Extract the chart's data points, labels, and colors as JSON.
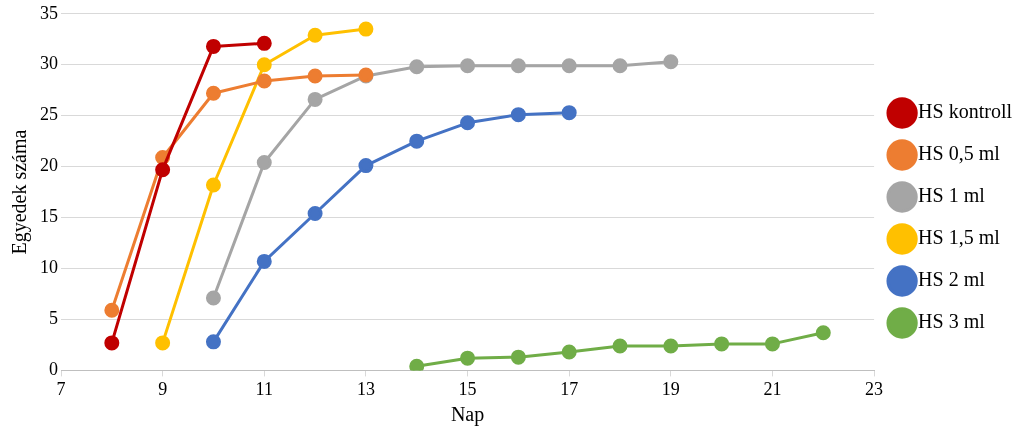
{
  "chart_data": {
    "type": "line",
    "xlabel": "Nap",
    "ylabel": "Egyedek száma",
    "xlim": [
      7,
      23
    ],
    "xticks": [
      7,
      9,
      11,
      13,
      15,
      17,
      19,
      21,
      23
    ],
    "ylim": [
      0,
      35
    ],
    "yticks": [
      0,
      5,
      10,
      15,
      20,
      25,
      30,
      35
    ],
    "grid": "y",
    "legend": "right",
    "marker": "circle",
    "line_style": "solid",
    "series": [
      {
        "name": "HS kontroll",
        "color": "#c00000",
        "x": [
          8,
          9,
          10,
          11
        ],
        "values": [
          2.7,
          19.7,
          31.8,
          32.1
        ]
      },
      {
        "name": "HS 0,5 ml",
        "color": "#ed7d31",
        "x": [
          8,
          9,
          10,
          11,
          12,
          13
        ],
        "values": [
          5.9,
          20.9,
          27.2,
          28.4,
          28.9,
          29.0
        ]
      },
      {
        "name": "HS 1 ml",
        "color": "#a5a5a5",
        "x": [
          10,
          11,
          12,
          13,
          14,
          15,
          16,
          17,
          18,
          19
        ],
        "values": [
          7.1,
          20.4,
          26.6,
          28.9,
          29.8,
          29.9,
          29.9,
          29.9,
          29.9,
          30.3
        ]
      },
      {
        "name": "HS 1,5 ml",
        "color": "#ffc000",
        "x": [
          9,
          10,
          11,
          12,
          13
        ],
        "values": [
          2.7,
          18.2,
          30.0,
          32.9,
          33.5
        ]
      },
      {
        "name": "HS 2 ml",
        "color": "#4472c4",
        "x": [
          10,
          11,
          12,
          13,
          14,
          15,
          16,
          17
        ],
        "values": [
          2.8,
          10.7,
          15.4,
          20.1,
          22.5,
          24.3,
          25.1,
          25.3
        ]
      },
      {
        "name": "HS 3 ml",
        "color": "#70ad47",
        "x": [
          14,
          15,
          16,
          17,
          18,
          19,
          20,
          21,
          22
        ],
        "values": [
          0.4,
          1.2,
          1.3,
          1.8,
          2.4,
          2.4,
          2.6,
          2.6,
          3.7
        ]
      }
    ]
  }
}
